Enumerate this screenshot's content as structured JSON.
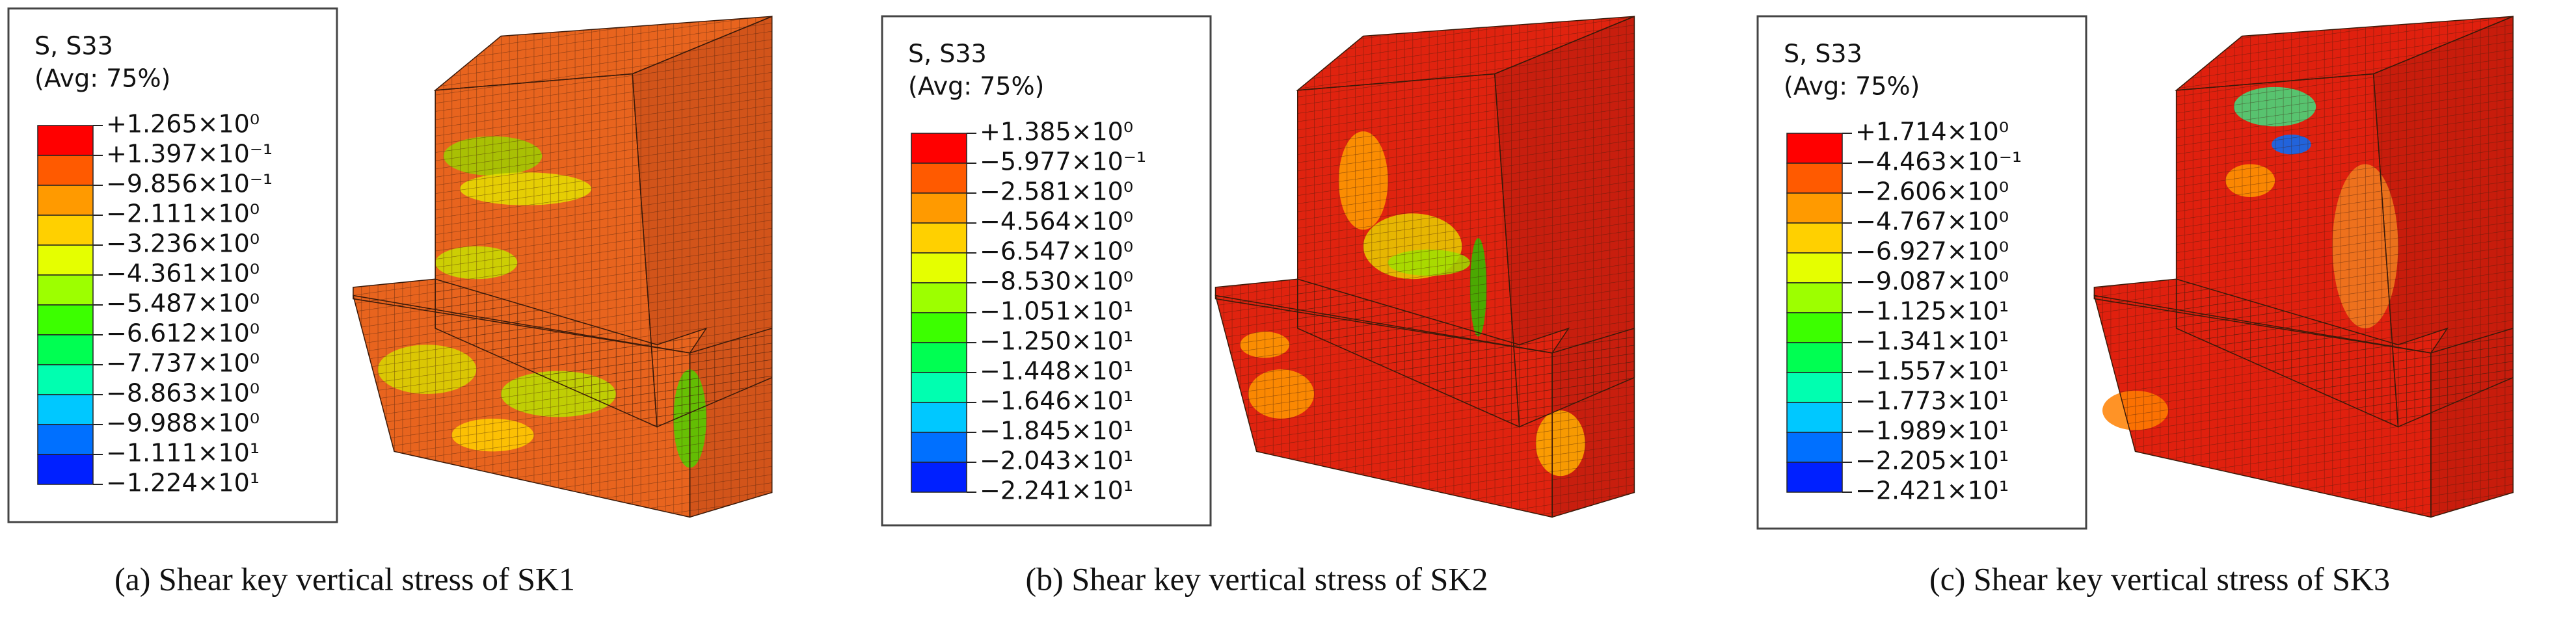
{
  "panels": [
    {
      "legend": {
        "title": "S, S33",
        "subtitle": "(Avg: 75%)",
        "labels": [
          "+1.265×10⁰",
          "+1.397×10⁻¹",
          "−9.856×10⁻¹",
          "−2.111×10⁰",
          "−3.236×10⁰",
          "−4.361×10⁰",
          "−5.487×10⁰",
          "−6.612×10⁰",
          "−7.737×10⁰",
          "−8.863×10⁰",
          "−9.988×10⁰",
          "−1.111×10¹",
          "−1.224×10¹"
        ]
      },
      "caption": "(a) Shear key vertical stress of SK1"
    },
    {
      "legend": {
        "title": "S, S33",
        "subtitle": "(Avg: 75%)",
        "labels": [
          "+1.385×10⁰",
          "−5.977×10⁻¹",
          "−2.581×10⁰",
          "−4.564×10⁰",
          "−6.547×10⁰",
          "−8.530×10⁰",
          "−1.051×10¹",
          "−1.250×10¹",
          "−1.448×10¹",
          "−1.646×10¹",
          "−1.845×10¹",
          "−2.043×10¹",
          "−2.241×10¹"
        ]
      },
      "caption": "(b) Shear key vertical stress of SK2"
    },
    {
      "legend": {
        "title": "S, S33",
        "subtitle": "(Avg: 75%)",
        "labels": [
          "+1.714×10⁰",
          "−4.463×10⁻¹",
          "−2.606×10⁰",
          "−4.767×10⁰",
          "−6.927×10⁰",
          "−9.087×10⁰",
          "−1.125×10¹",
          "−1.341×10¹",
          "−1.557×10¹",
          "−1.773×10¹",
          "−1.989×10¹",
          "−2.205×10¹",
          "−2.421×10¹"
        ]
      },
      "caption": "(c) Shear key vertical stress of SK3"
    }
  ]
}
